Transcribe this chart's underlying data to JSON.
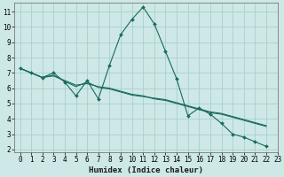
{
  "xlabel": "Humidex (Indice chaleur)",
  "ylabel": "",
  "bg_color": "#cde8e6",
  "grid_color": "#aacfcc",
  "line_color": "#1a6b5a",
  "series1_x": [
    0,
    1,
    2,
    3,
    4,
    5,
    6,
    7,
    8,
    9,
    10,
    11,
    12,
    13,
    14,
    15,
    16,
    17,
    18,
    19,
    20,
    21,
    22
  ],
  "series1_y": [
    7.3,
    7.0,
    6.7,
    7.0,
    6.4,
    5.5,
    6.5,
    5.3,
    7.5,
    9.5,
    10.5,
    11.3,
    10.2,
    8.4,
    6.6,
    4.2,
    4.7,
    4.3,
    3.7,
    3.0,
    2.8,
    2.5,
    2.2
  ],
  "series2_x": [
    0,
    1,
    2,
    3,
    4,
    5,
    6,
    7,
    8,
    9,
    10,
    11,
    12,
    13,
    14,
    15,
    16,
    17,
    18,
    19,
    20,
    21,
    22
  ],
  "series2_y": [
    7.3,
    7.0,
    6.7,
    6.8,
    6.5,
    6.2,
    6.3,
    6.1,
    6.0,
    5.8,
    5.6,
    5.5,
    5.3,
    5.2,
    5.0,
    4.8,
    4.6,
    4.4,
    4.3,
    4.1,
    3.9,
    3.7,
    3.5
  ],
  "series3_x": [
    0,
    1,
    2,
    3,
    4,
    5,
    6,
    7,
    8,
    9,
    10,
    11,
    12,
    13,
    14,
    15,
    16,
    17,
    18,
    19,
    20,
    21,
    22
  ],
  "series3_y": [
    7.3,
    7.0,
    6.7,
    6.85,
    6.45,
    6.1,
    6.4,
    6.05,
    5.95,
    5.75,
    5.55,
    5.45,
    5.35,
    5.25,
    5.05,
    4.85,
    4.65,
    4.45,
    4.35,
    4.15,
    3.95,
    3.75,
    3.55
  ],
  "ylim": [
    1.8,
    11.6
  ],
  "xlim": [
    -0.5,
    23.0
  ],
  "yticks": [
    2,
    3,
    4,
    5,
    6,
    7,
    8,
    9,
    10,
    11
  ],
  "xticks": [
    0,
    1,
    2,
    3,
    4,
    5,
    6,
    7,
    8,
    9,
    10,
    11,
    12,
    13,
    14,
    15,
    16,
    17,
    18,
    19,
    20,
    21,
    22,
    23
  ],
  "marker": "D",
  "markersize": 2.0,
  "linewidth": 0.8,
  "tick_fontsize": 5.5,
  "xlabel_fontsize": 6.5
}
